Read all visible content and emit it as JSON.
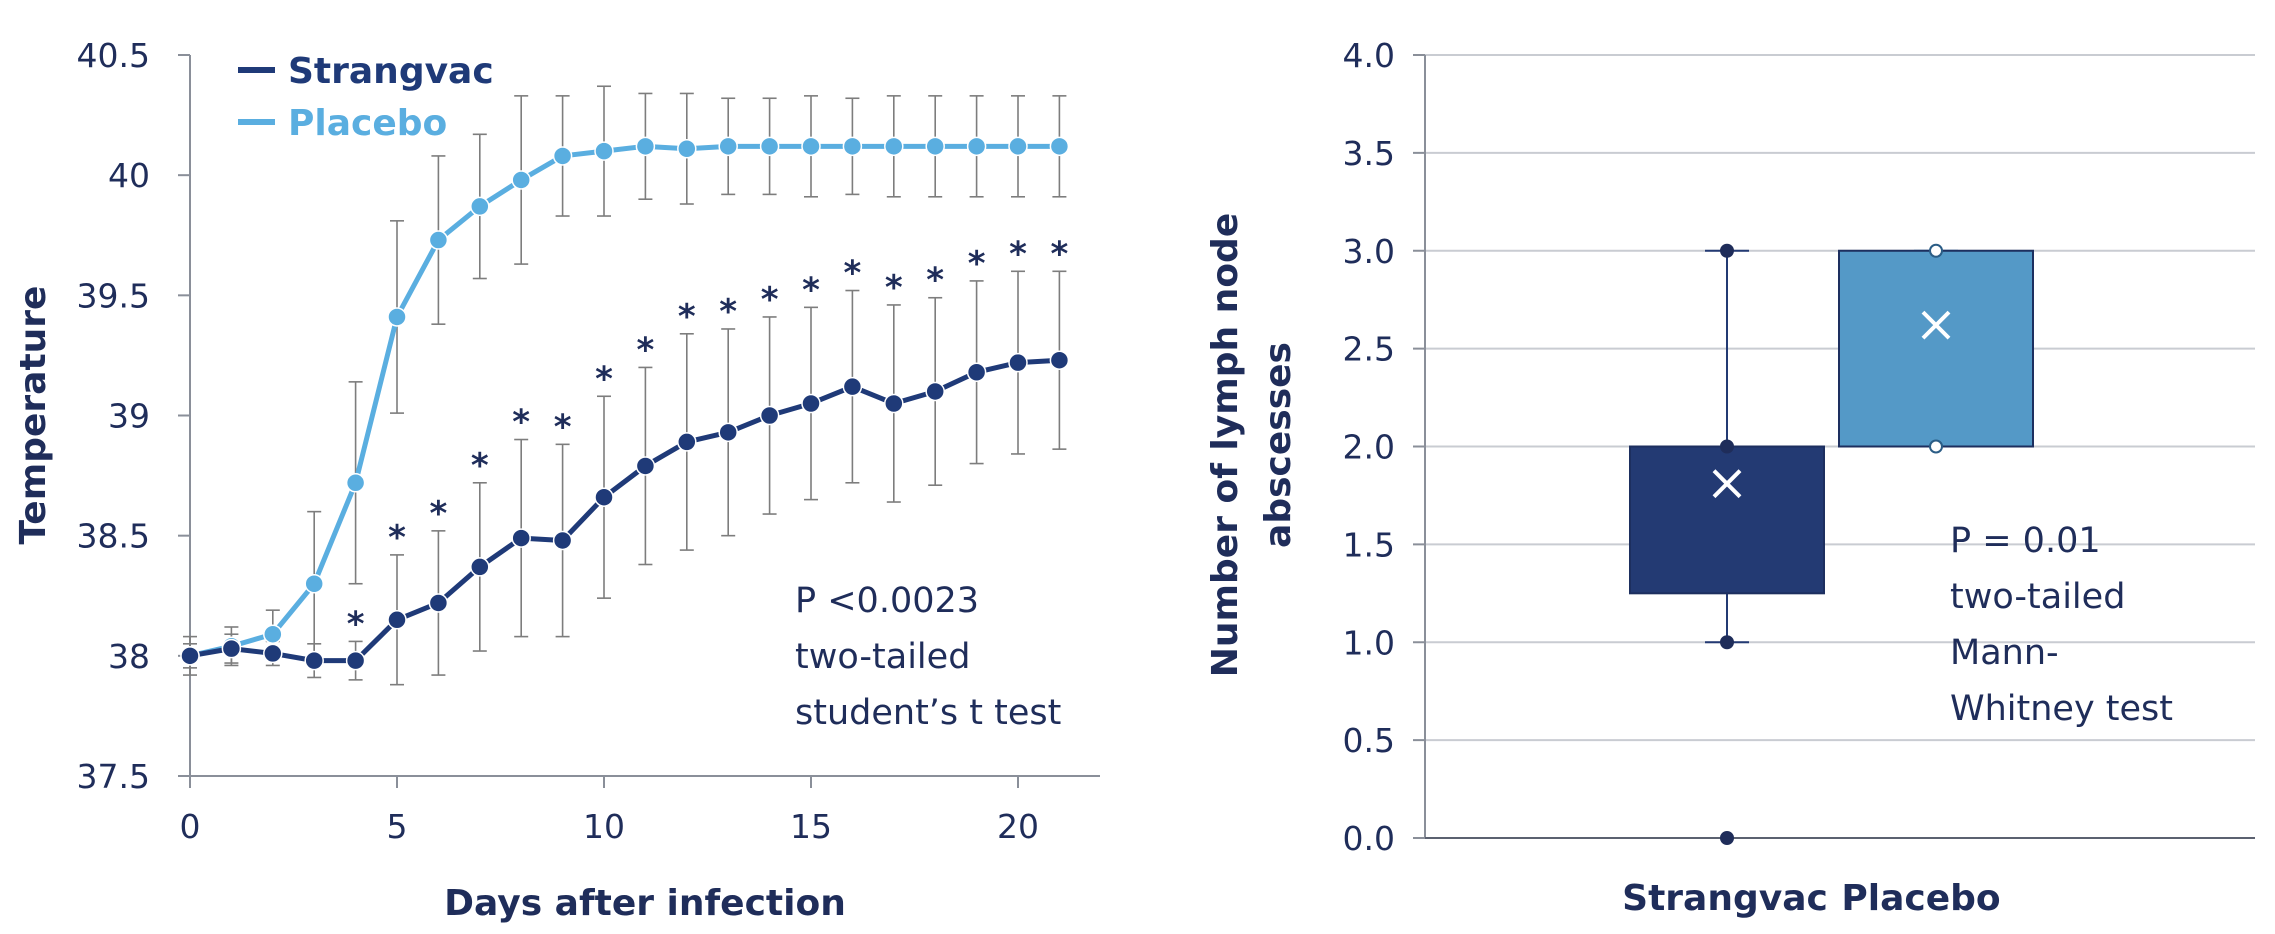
{
  "chart_data": [
    {
      "type": "line",
      "xlabel": "Days after infection",
      "ylabel": "Temperature",
      "xlim": [
        0,
        21.5
      ],
      "ylim": [
        37.5,
        40.5
      ],
      "xticks": [
        "0",
        "5",
        "10",
        "15",
        "20"
      ],
      "yticks": [
        "37.5",
        "38",
        "38.5",
        "39",
        "39.5",
        "40",
        "40.5"
      ],
      "grid": false,
      "legend_position": "top-left",
      "x": [
        0,
        1,
        2,
        3,
        4,
        5,
        6,
        7,
        8,
        9,
        10,
        11,
        12,
        13,
        14,
        15,
        16,
        17,
        18,
        19,
        20,
        21
      ],
      "series": [
        {
          "name": "Strangvac",
          "color": "#1f3a78",
          "values": [
            38.0,
            38.03,
            38.01,
            37.98,
            37.98,
            38.15,
            38.22,
            38.37,
            38.49,
            38.48,
            38.66,
            38.79,
            38.89,
            38.93,
            39.0,
            39.05,
            39.12,
            39.05,
            39.1,
            39.18,
            39.22,
            39.23
          ],
          "errors": [
            0.05,
            0.06,
            0.05,
            0.07,
            0.08,
            0.27,
            0.3,
            0.35,
            0.41,
            0.4,
            0.42,
            0.41,
            0.45,
            0.43,
            0.41,
            0.4,
            0.4,
            0.41,
            0.39,
            0.38,
            0.38,
            0.37
          ]
        },
        {
          "name": "Placebo",
          "color": "#5aaee0",
          "values": [
            38.0,
            38.04,
            38.09,
            38.3,
            38.72,
            39.41,
            39.73,
            39.87,
            39.98,
            40.08,
            40.1,
            40.12,
            40.11,
            40.12,
            40.12,
            40.12,
            40.12,
            40.12,
            40.12,
            40.12,
            40.12,
            40.12
          ],
          "errors": [
            0.08,
            0.08,
            0.1,
            0.3,
            0.42,
            0.4,
            0.35,
            0.3,
            0.35,
            0.25,
            0.27,
            0.22,
            0.23,
            0.2,
            0.2,
            0.21,
            0.2,
            0.21,
            0.21,
            0.21,
            0.21,
            0.21
          ]
        }
      ],
      "significance_marker": "*",
      "significant_days": [
        4,
        5,
        6,
        7,
        8,
        9,
        10,
        11,
        12,
        13,
        14,
        15,
        16,
        17,
        18,
        19,
        20,
        21
      ],
      "annotation": [
        "P <0.0023",
        "two-tailed",
        "student’s t test"
      ]
    },
    {
      "type": "box",
      "xlabel": "",
      "ylabel_lines": [
        "Number of lymph node",
        "abscesses"
      ],
      "ylim": [
        0.0,
        4.0
      ],
      "yticks": [
        "0.0",
        "0.5",
        "1.0",
        "1.5",
        "2.0",
        "2.5",
        "3.0",
        "3.5",
        "4.0"
      ],
      "grid": true,
      "categories": [
        "Strangvac",
        "Placebo"
      ],
      "boxes": [
        {
          "name": "Strangvac",
          "color": "#233a73",
          "q1": 1.25,
          "median": 2.0,
          "q3": 2.0,
          "mean": 1.81,
          "whisker_low": 1.0,
          "whisker_high": 3.0,
          "points": [
            0.0,
            1.0,
            2.0,
            3.0
          ]
        },
        {
          "name": "Placebo",
          "color": "#5499c7",
          "q1": 2.0,
          "median": 3.0,
          "q3": 3.0,
          "mean": 2.62,
          "whisker_low": 2.0,
          "whisker_high": 3.0,
          "points": [
            2.0,
            3.0
          ]
        }
      ],
      "annotation": [
        "P = 0.01",
        "two-tailed",
        "Mann-",
        "Whitney test"
      ]
    }
  ]
}
